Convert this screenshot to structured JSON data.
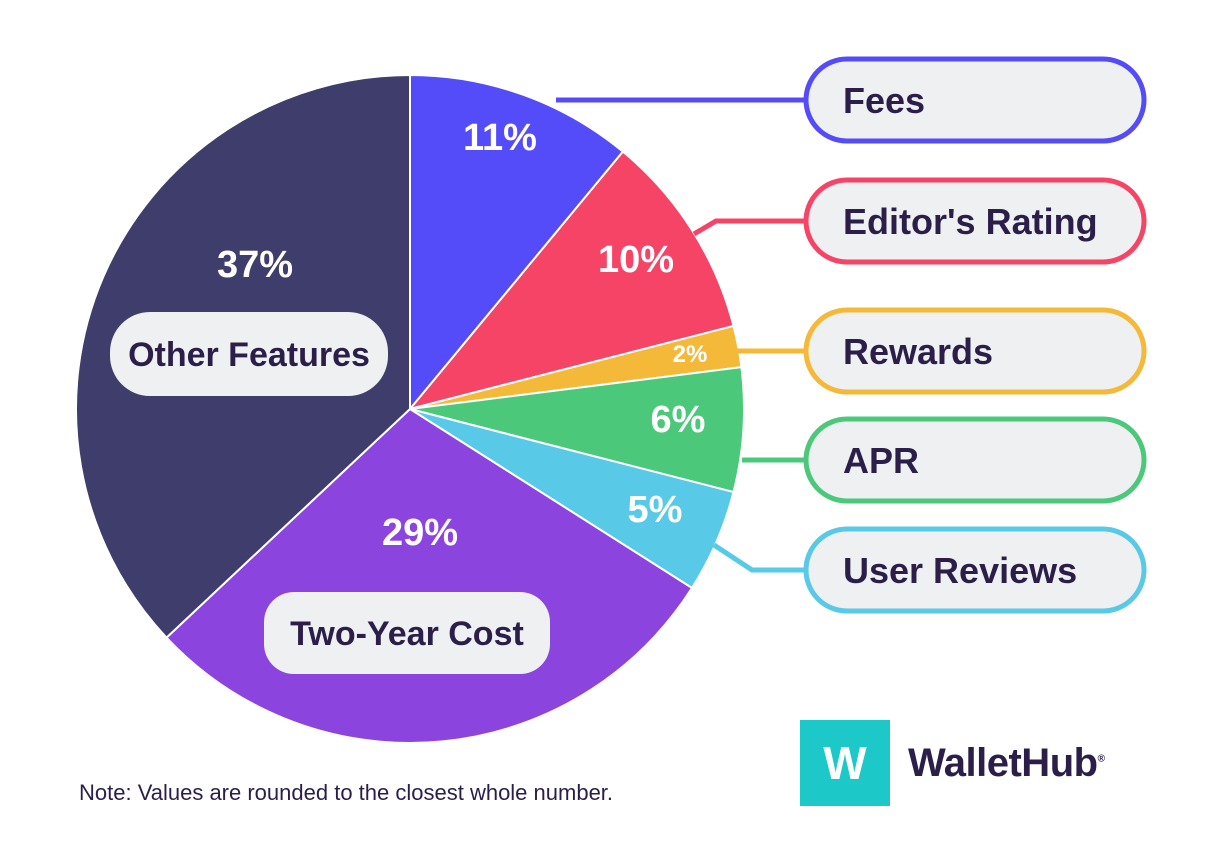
{
  "chart_data": {
    "type": "pie",
    "title": "",
    "slices": [
      {
        "name": "Fees",
        "value": 11,
        "label": "11%",
        "color": "#544cf9",
        "style": "callout"
      },
      {
        "name": "Editor's Rating",
        "value": 10,
        "label": "10%",
        "color": "#f54466",
        "style": "callout"
      },
      {
        "name": "Rewards",
        "value": 2,
        "label": "2%",
        "color": "#f5b93a",
        "style": "callout"
      },
      {
        "name": "APR",
        "value": 6,
        "label": "6%",
        "color": "#4bc87a",
        "style": "callout"
      },
      {
        "name": "User Reviews",
        "value": 5,
        "label": "5%",
        "color": "#59c9e8",
        "style": "callout"
      },
      {
        "name": "Two-Year Cost",
        "value": 29,
        "label": "29%",
        "color": "#8c44df",
        "style": "inside"
      },
      {
        "name": "Other Features",
        "value": 37,
        "label": "37%",
        "color": "#3f3d6b",
        "style": "inside"
      }
    ]
  },
  "note": "Note: Values are rounded to the closest whole number.",
  "brand": {
    "logo_letter": "W",
    "name": "WalletHub",
    "mark": "®",
    "accent_color": "#1dc9c8"
  },
  "colors": {
    "text_dark": "#2b1f4a",
    "pill_fill": "#eef0f2"
  }
}
